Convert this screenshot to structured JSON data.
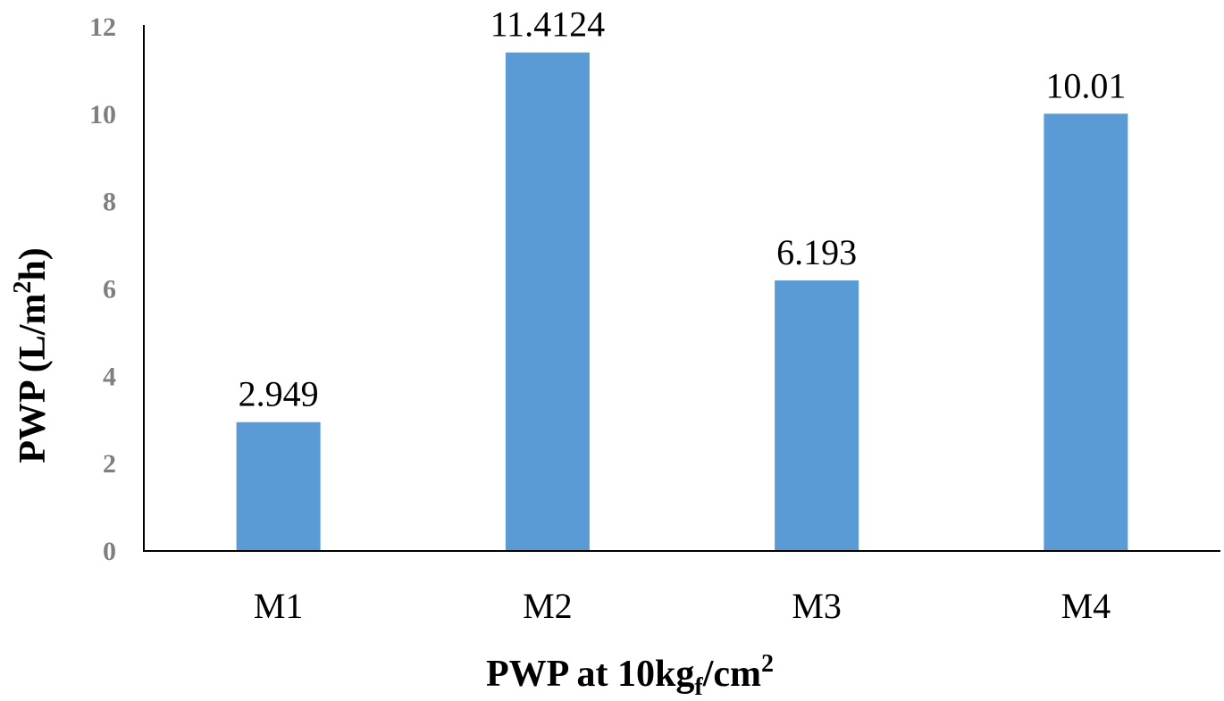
{
  "chart_data": {
    "type": "bar",
    "title": "",
    "xlabel": "PWP at 10kg",
    "xlabel_sub": "f",
    "xlabel_tail": "/cm",
    "xlabel_sup": "2",
    "ylabel": "PWP (L/m",
    "ylabel_sup": "2",
    "ylabel_tail": "h)",
    "categories": [
      "M1",
      "M2",
      "M3",
      "M4"
    ],
    "values": [
      2.949,
      11.4124,
      6.193,
      10.01
    ],
    "data_labels": [
      "2.949",
      "11.4124",
      "6.193",
      "10.01"
    ],
    "ylim": [
      0,
      12
    ],
    "yticks": [
      0,
      2,
      4,
      6,
      8,
      10,
      12
    ],
    "grid": false,
    "legend": "none",
    "bar_color": "#5b9bd5"
  }
}
